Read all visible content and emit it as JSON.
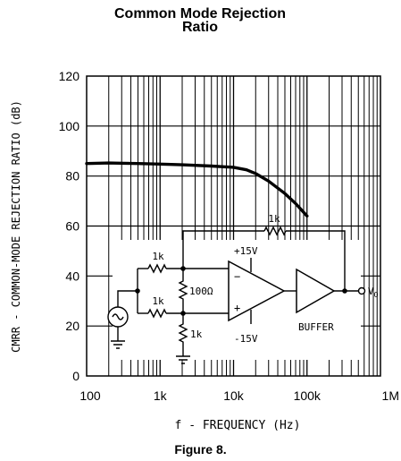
{
  "chart_data": {
    "type": "line",
    "title_line1": "Common Mode Rejection",
    "title_line2": "Ratio",
    "xlabel": "f - FREQUENCY (Hz)",
    "ylabel": "CMRR - COMMON-MODE REJECTION RATIO (dB)",
    "x_scale": "log",
    "xlim": [
      100,
      1000000
    ],
    "ylim": [
      0,
      120
    ],
    "x_ticks": [
      {
        "value": 100,
        "label": "100"
      },
      {
        "value": 1000,
        "label": "1k"
      },
      {
        "value": 10000,
        "label": "10k"
      },
      {
        "value": 100000,
        "label": "100k"
      },
      {
        "value": 1000000,
        "label": "1M"
      }
    ],
    "y_ticks": [
      {
        "value": 0,
        "label": "0"
      },
      {
        "value": 20,
        "label": "20"
      },
      {
        "value": 40,
        "label": "40"
      },
      {
        "value": 60,
        "label": "60"
      },
      {
        "value": 80,
        "label": "80"
      },
      {
        "value": 100,
        "label": "100"
      },
      {
        "value": 120,
        "label": "120"
      }
    ],
    "grid": true,
    "series": [
      {
        "x": [
          100,
          200,
          500,
          1000,
          2000,
          5000,
          10000,
          15000,
          20000,
          30000,
          50000,
          70000,
          100000
        ],
        "y": [
          85,
          85.2,
          85,
          84.8,
          84.5,
          84,
          83.5,
          82.5,
          81,
          78,
          73,
          69,
          64
        ]
      }
    ]
  },
  "inset": {
    "resistor_top_left": "1k",
    "resistor_bottom_left": "1k",
    "resistor_middle": "100Ω",
    "resistor_bottom": "1k",
    "resistor_feedback": "1k",
    "supply_positive": "+15V",
    "supply_negative": "-15V",
    "opamp_minus": "−",
    "opamp_plus": "+",
    "buffer_label": "BUFFER",
    "output_label": "V",
    "output_subscript": "O"
  },
  "figure_caption": "Figure 8."
}
